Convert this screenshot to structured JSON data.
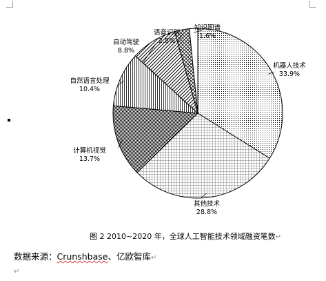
{
  "chart_data": {
    "type": "pie",
    "title": "",
    "slices": [
      {
        "label": "机器人技术",
        "value": 33.9,
        "display": "33.9%",
        "pattern": "pat-dots"
      },
      {
        "label": "其他技术",
        "value": 28.8,
        "display": "28.8%",
        "pattern": "pat-grid"
      },
      {
        "label": "计算机视觉",
        "value": 13.7,
        "display": "13.7%",
        "pattern": "pat-check"
      },
      {
        "label": "自然语言处理",
        "value": 10.4,
        "display": "10.4%",
        "pattern": "pat-vert"
      },
      {
        "label": "自动驾驶",
        "value": 8.8,
        "display": "8.8%",
        "pattern": "pat-diag"
      },
      {
        "label": "语音识别",
        "value": 2.8,
        "display": "2.8%",
        "pattern": "pat-cross"
      },
      {
        "label": "知识图谱",
        "value": 1.6,
        "display": "1.6%",
        "pattern": "pat-white"
      }
    ],
    "label_position": "outside",
    "legend": "none"
  },
  "caption": {
    "text": "图 2 2010~2020 年，全球人工智能技术领域融资笔数",
    "para_mark": "↵"
  },
  "source": {
    "prefix": "数据来源：",
    "name1": "Crunshbase",
    "separator": "、",
    "name2": "亿欧智库",
    "para_mark": "↵"
  },
  "blank_para_mark": "↵"
}
